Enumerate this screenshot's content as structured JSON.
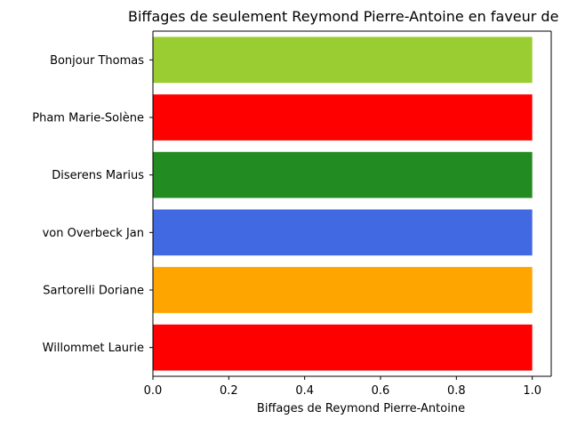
{
  "chart_data": {
    "type": "bar",
    "orientation": "horizontal",
    "title": "Biffages de seulement Reymond Pierre-Antoine en faveur de",
    "xlabel": "Biffages de Reymond Pierre-Antoine",
    "ylabel": "",
    "xlim": [
      0,
      1.05
    ],
    "xticks": [
      "0.0",
      "0.2",
      "0.4",
      "0.6",
      "0.8",
      "1.0"
    ],
    "grid": false,
    "categories": [
      "Bonjour Thomas",
      "Pham Marie-Solène",
      "Diserens Marius",
      "von Overbeck Jan",
      "Sartorelli Doriane",
      "Willommet Laurie"
    ],
    "values": [
      1,
      1,
      1,
      1,
      1,
      1
    ],
    "colors": [
      "#9acd32",
      "#ff0000",
      "#228b22",
      "#4169e1",
      "#ffa500",
      "#ff0000"
    ]
  }
}
